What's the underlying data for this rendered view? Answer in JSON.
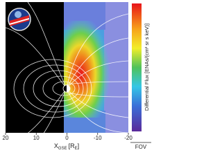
{
  "chart_data": {
    "type": "image",
    "xlabel": {
      "main": "X",
      "sub": "GSE",
      "unit": "[R",
      "unit_sub": "E",
      "close": "]"
    },
    "colorbar_label": "Differential Flux [ENAs/(cm² sr s keV)]",
    "fov_label": "FOV",
    "xlim": [
      20,
      -20
    ],
    "xticks": [
      20,
      10,
      0,
      -10,
      -20
    ]
  }
}
